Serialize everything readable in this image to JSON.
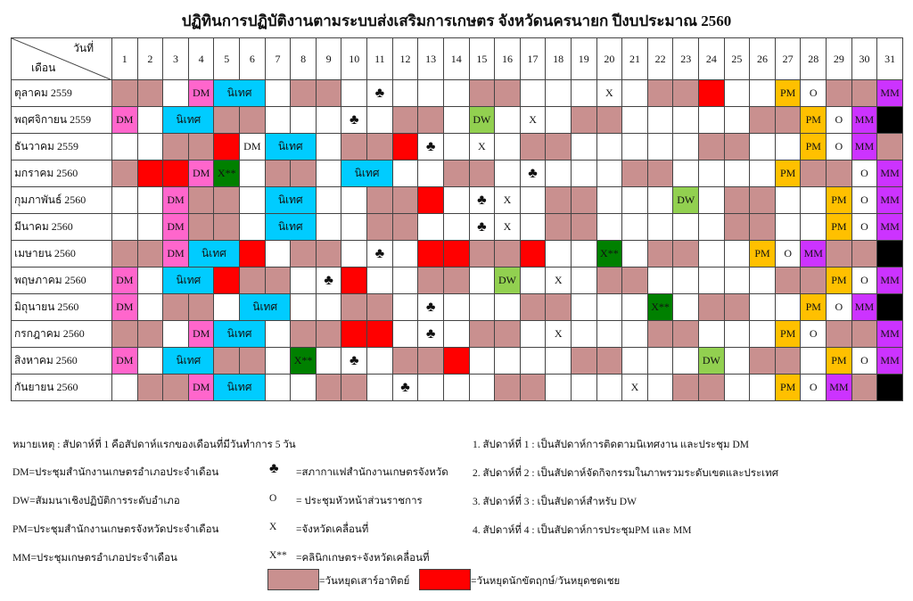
{
  "title": "ปฏิทินการปฏิบัติงานตามระบบส่งเสริมการเกษตร จังหวัดนครนายก ปีงบประมาณ 2560",
  "header": {
    "day_label": "วันที่",
    "month_label": "เดือน",
    "days": [
      1,
      2,
      3,
      4,
      5,
      6,
      7,
      8,
      9,
      10,
      11,
      12,
      13,
      14,
      15,
      16,
      17,
      18,
      19,
      20,
      21,
      22,
      23,
      24,
      25,
      26,
      27,
      28,
      29,
      30,
      31
    ]
  },
  "palette": {
    "w": "#c9908f",
    "h": "#ff0000",
    "d": "#ff66cc",
    "n": "#00ccff",
    "g": "#92d050",
    "k": "#008000",
    "p": "#ffc000",
    "m": "#cc33ff",
    "b": "#000000",
    ".": "#ffffff"
  },
  "rows": [
    {
      "month": "ตุลาคม 2559",
      "fills": "ww.dnn.ww.....ww.....wwh..p.wwm",
      "cells": {
        "4": "DM",
        "5": "นิเทศ",
        "11": "♣",
        "20": "X",
        "27": "PM",
        "28": "O",
        "31": "MM"
      }
    },
    {
      "month": "พฤศจิกายน 2559",
      "fills": "d.nnww.....ww.g...ww.....wwp.mb",
      "cells": {
        "1": "DM",
        "3": "นิเทศ",
        "10": "♣",
        "15": "DW",
        "17": "X",
        "28": "PM",
        "29": "O",
        "30": "MM"
      }
    },
    {
      "month": "ธันวาคม 2559",
      "fills": "..wwh.nn.wwh....ww.....ww..p.mw",
      "cells": {
        "6": "DM",
        "7": "นิเทศ",
        "13": "♣",
        "15": "X",
        "28": "PM",
        "29": "O",
        "30": "MM"
      }
    },
    {
      "month": "มกราคม 2560",
      "fills": "whhdk.ww.nn..ww.....ww....pww.m",
      "cells": {
        "4": "DM",
        "5": "X**",
        "10": "นิเทศ",
        "17": "♣",
        "27": "PM",
        "30": "O",
        "31": "MM"
      }
    },
    {
      "month": "กุมภาพันธ์ 2560",
      "fills": "..dww.nn..wwh....ww...g.ww..p.m",
      "cells": {
        "3": "DM",
        "7": "นิเทศ",
        "15": "♣",
        "16": "X",
        "23": "DW",
        "29": "PM",
        "30": "O",
        "31": "MM"
      }
    },
    {
      "month": "มีนาคม 2560",
      "fills": "..dww.nn..ww.....ww.....ww..p.m",
      "cells": {
        "3": "DM",
        "7": "นิเทศ",
        "15": "♣",
        "16": "X",
        "29": "PM",
        "30": "O",
        "31": "MM"
      }
    },
    {
      "month": "เมษายน 2560",
      "fills": "wwdnnh.ww...hhwwh..k.ww..p.mwwb",
      "cells": {
        "3": "DM",
        "4": "นิเทศ",
        "11": "♣",
        "20": "X**",
        "26": "PM",
        "27": "O",
        "28": "MM"
      }
    },
    {
      "month": "พฤษภาคม 2560",
      "fills": "d.nnhww..h..ww.g...ww.....wwp.m",
      "cells": {
        "1": "DM",
        "3": "นิเทศ",
        "9": "♣",
        "16": "DW",
        "18": "X",
        "29": "PM",
        "30": "O",
        "31": "MM"
      }
    },
    {
      "month": "มิถุนายน 2560",
      "fills": "d.ww.nn..ww.....ww...k.ww..p.mb",
      "cells": {
        "1": "DM",
        "6": "นิเทศ",
        "13": "♣",
        "22": "X**",
        "28": "PM",
        "29": "O",
        "30": "MM"
      }
    },
    {
      "month": "กรกฎาคม 2560",
      "fills": "ww.dnn.wwhh...ww.....ww...p.wwm",
      "cells": {
        "4": "DM",
        "5": "นิเทศ",
        "13": "♣",
        "18": "X",
        "27": "PM",
        "28": "O",
        "31": "MM"
      }
    },
    {
      "month": "สิงหาคม 2560",
      "fills": "d.nnww.k...wwh....ww...g.ww.p.m",
      "cells": {
        "1": "DM",
        "3": "นิเทศ",
        "8": "X**",
        "10": "♣",
        "24": "DW",
        "29": "PM",
        "30": "O",
        "31": "MM"
      }
    },
    {
      "month": "กันยายน 2560",
      "fills": ".wwdnn..ww.....ww.....ww..p.mwb",
      "cells": {
        "4": "DM",
        "5": "นิเทศ",
        "12": "♣",
        "21": "X",
        "27": "PM",
        "28": "O",
        "29": "MM"
      }
    }
  ],
  "notes": {
    "remark": "หมายเหตุ  :  สัปดาห์ที่ 1 คือสัปดาห์แรกของเดือนที่มีวันทำการ 5 วัน",
    "abbreviations": [
      "DM=ประชุมสำนักงานเกษตรอำเภอประจำเดือน",
      "DW=สัมมนาเชิงปฏิบัติการระดับอำเภอ",
      "PM=ประชุมสำนักงานเกษตรจังหวัดประจำเดือน",
      "MM=ประชุมเกษตรอำเภอประจำเดือน"
    ],
    "symbols": [
      {
        "symbol": "♣",
        "text": "=สภากาแฟสำนักงานเกษตรจังหวัด"
      },
      {
        "symbol": "O",
        "text": "= ประชุมหัวหน้าส่วนราชการ"
      },
      {
        "symbol": "X",
        "text": "=จังหวัดเคลื่อนที่"
      },
      {
        "symbol": "X**",
        "text": "=คลินิกเกษตร+จังหวัดเคลื่อนที่"
      }
    ],
    "weekend": "=วันหยุดเสาร์อาทิตย์",
    "holiday": "=วันหยุดนักขัตฤกษ์/วันหยุดชดเชย",
    "weeks": [
      "1. สัปดาห์ที่ 1 : เป็นสัปดาห์การติดตามนิเทศงาน และประชุม DM",
      "2. สัปดาห์ที่ 2 : เป็นสัปดาห์จัดกิจกรรมในภาพรวมระดับเขตและประเทศ",
      "3. สัปดาห์ที่ 3 : เป็นสัปดาห์สำหรับ DW",
      "4. สัปดาห์ที่ 4 : เป็นสัปดาห์การประชุมPM และ MM"
    ]
  }
}
